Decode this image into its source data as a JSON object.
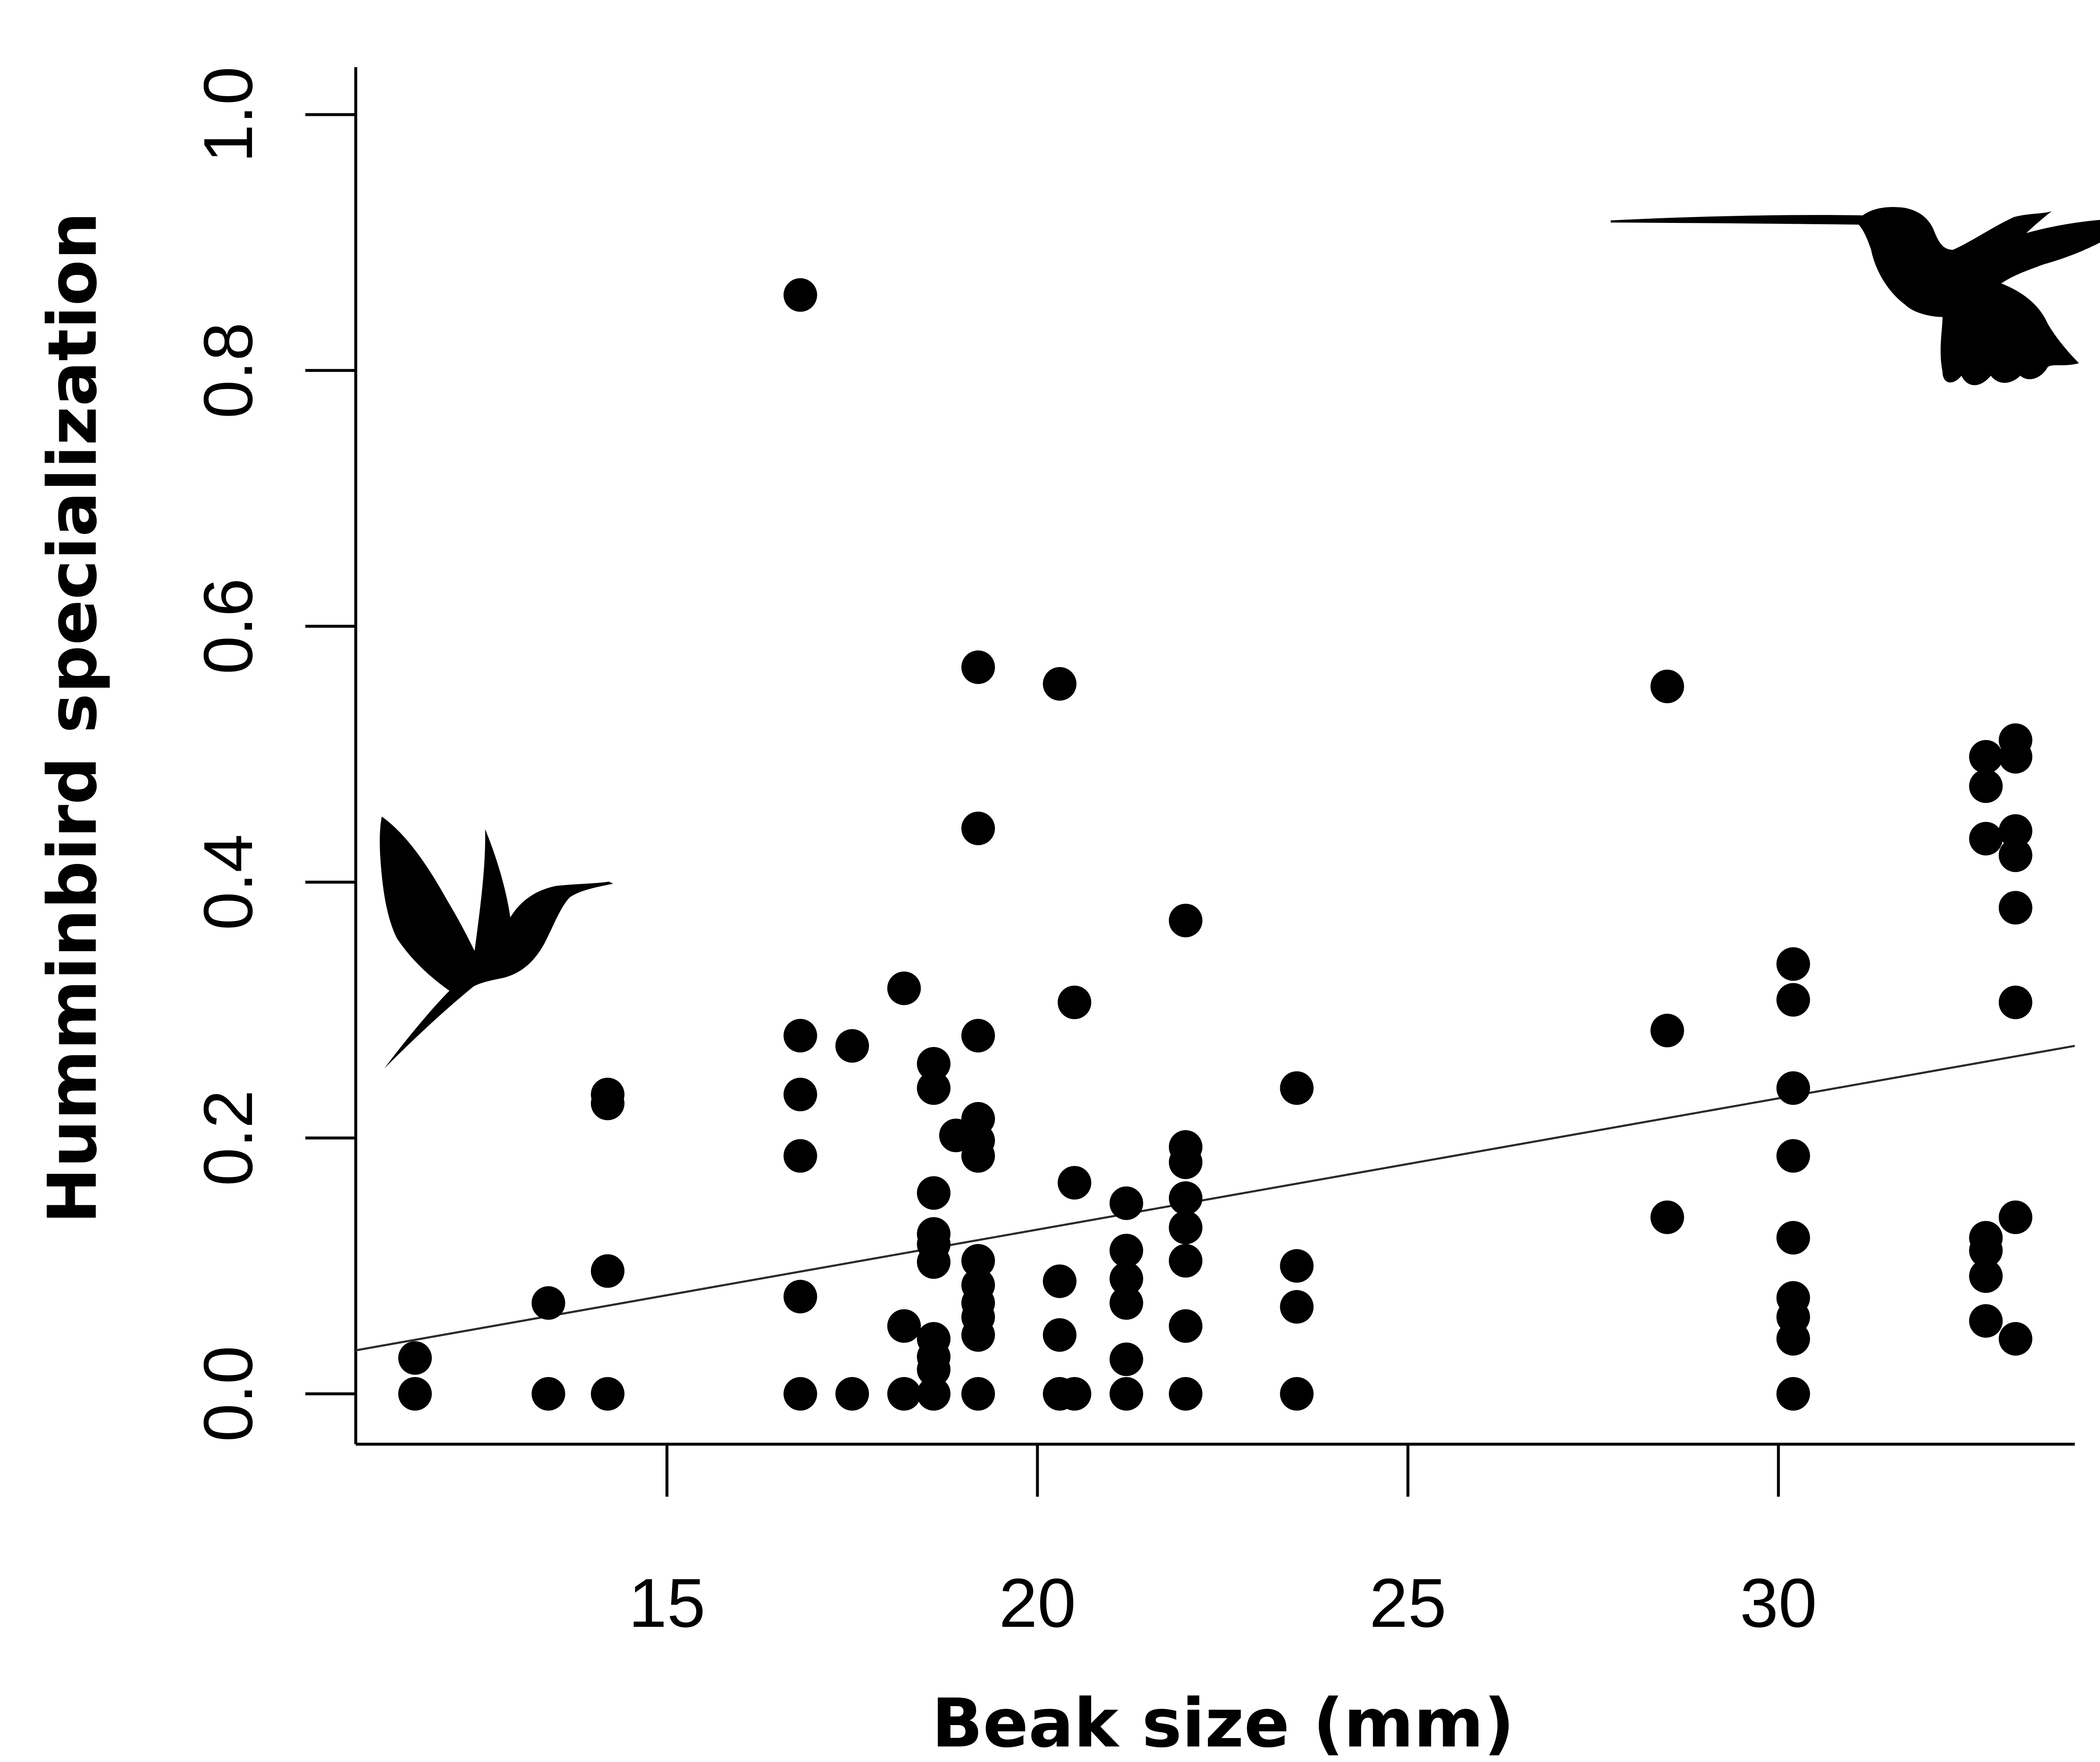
{
  "chart_data": {
    "type": "scatter",
    "xlabel": "Beak size (mm)",
    "ylabel": "Humminbird specialization",
    "xlim": [
      10.8,
      34.0
    ],
    "ylim": [
      0.0,
      1.0
    ],
    "x_ticks": [
      "15",
      "20",
      "25",
      "30"
    ],
    "x_tick_values": [
      15,
      20,
      25,
      30
    ],
    "y_ticks": [
      "0.0",
      "0.2",
      "0.4",
      "0.6",
      "0.8",
      "1.0"
    ],
    "y_tick_values": [
      0.0,
      0.2,
      0.4,
      0.6,
      0.8,
      1.0
    ],
    "grid": false,
    "legend": "none",
    "marker_color": "#000000",
    "trendline": {
      "x": [
        10.8,
        34.0
      ],
      "y": [
        0.034,
        0.272
      ]
    },
    "points": [
      {
        "x": 11.6,
        "y": 0.0
      },
      {
        "x": 11.6,
        "y": 0.028
      },
      {
        "x": 13.4,
        "y": 0.0
      },
      {
        "x": 13.4,
        "y": 0.071
      },
      {
        "x": 14.2,
        "y": 0.0
      },
      {
        "x": 14.2,
        "y": 0.096
      },
      {
        "x": 14.2,
        "y": 0.227
      },
      {
        "x": 14.2,
        "y": 0.234
      },
      {
        "x": 16.8,
        "y": 0.0
      },
      {
        "x": 16.8,
        "y": 0.076
      },
      {
        "x": 16.8,
        "y": 0.186
      },
      {
        "x": 16.8,
        "y": 0.234
      },
      {
        "x": 16.8,
        "y": 0.28
      },
      {
        "x": 16.8,
        "y": 0.859
      },
      {
        "x": 17.5,
        "y": 0.0
      },
      {
        "x": 17.5,
        "y": 0.272
      },
      {
        "x": 18.2,
        "y": 0.0
      },
      {
        "x": 18.2,
        "y": 0.053
      },
      {
        "x": 18.2,
        "y": 0.317
      },
      {
        "x": 18.6,
        "y": 0.0
      },
      {
        "x": 18.6,
        "y": 0.019
      },
      {
        "x": 18.6,
        "y": 0.029
      },
      {
        "x": 18.6,
        "y": 0.043
      },
      {
        "x": 18.6,
        "y": 0.103
      },
      {
        "x": 18.6,
        "y": 0.117
      },
      {
        "x": 18.6,
        "y": 0.125
      },
      {
        "x": 18.6,
        "y": 0.157
      },
      {
        "x": 18.6,
        "y": 0.239
      },
      {
        "x": 18.6,
        "y": 0.258
      },
      {
        "x": 18.9,
        "y": 0.202
      },
      {
        "x": 19.2,
        "y": 0.0
      },
      {
        "x": 19.2,
        "y": 0.046
      },
      {
        "x": 19.2,
        "y": 0.06
      },
      {
        "x": 19.2,
        "y": 0.071
      },
      {
        "x": 19.2,
        "y": 0.085
      },
      {
        "x": 19.2,
        "y": 0.104
      },
      {
        "x": 19.2,
        "y": 0.186
      },
      {
        "x": 19.2,
        "y": 0.198
      },
      {
        "x": 19.2,
        "y": 0.215
      },
      {
        "x": 19.2,
        "y": 0.28
      },
      {
        "x": 19.2,
        "y": 0.442
      },
      {
        "x": 19.2,
        "y": 0.568
      },
      {
        "x": 20.3,
        "y": 0.0
      },
      {
        "x": 20.3,
        "y": 0.046
      },
      {
        "x": 20.3,
        "y": 0.088
      },
      {
        "x": 20.3,
        "y": 0.555
      },
      {
        "x": 20.5,
        "y": 0.0
      },
      {
        "x": 20.5,
        "y": 0.165
      },
      {
        "x": 20.5,
        "y": 0.306
      },
      {
        "x": 21.2,
        "y": 0.0
      },
      {
        "x": 21.2,
        "y": 0.027
      },
      {
        "x": 21.2,
        "y": 0.071
      },
      {
        "x": 21.2,
        "y": 0.09
      },
      {
        "x": 21.2,
        "y": 0.112
      },
      {
        "x": 21.2,
        "y": 0.149
      },
      {
        "x": 22.0,
        "y": 0.0
      },
      {
        "x": 22.0,
        "y": 0.053
      },
      {
        "x": 22.0,
        "y": 0.104
      },
      {
        "x": 22.0,
        "y": 0.13
      },
      {
        "x": 22.0,
        "y": 0.153
      },
      {
        "x": 22.0,
        "y": 0.181
      },
      {
        "x": 22.0,
        "y": 0.193
      },
      {
        "x": 22.0,
        "y": 0.37
      },
      {
        "x": 23.5,
        "y": 0.0
      },
      {
        "x": 23.5,
        "y": 0.068
      },
      {
        "x": 23.5,
        "y": 0.1
      },
      {
        "x": 23.5,
        "y": 0.239
      },
      {
        "x": 28.5,
        "y": 0.138
      },
      {
        "x": 28.5,
        "y": 0.284
      },
      {
        "x": 28.5,
        "y": 0.553
      },
      {
        "x": 30.2,
        "y": 0.0
      },
      {
        "x": 30.2,
        "y": 0.043
      },
      {
        "x": 30.2,
        "y": 0.06
      },
      {
        "x": 30.2,
        "y": 0.075
      },
      {
        "x": 30.2,
        "y": 0.122
      },
      {
        "x": 30.2,
        "y": 0.186
      },
      {
        "x": 30.2,
        "y": 0.239
      },
      {
        "x": 30.2,
        "y": 0.308
      },
      {
        "x": 30.2,
        "y": 0.336
      },
      {
        "x": 32.8,
        "y": 0.057
      },
      {
        "x": 32.8,
        "y": 0.092
      },
      {
        "x": 32.8,
        "y": 0.112
      },
      {
        "x": 32.8,
        "y": 0.122
      },
      {
        "x": 32.8,
        "y": 0.434
      },
      {
        "x": 32.8,
        "y": 0.475
      },
      {
        "x": 32.8,
        "y": 0.498
      },
      {
        "x": 33.2,
        "y": 0.043
      },
      {
        "x": 33.2,
        "y": 0.138
      },
      {
        "x": 33.2,
        "y": 0.306
      },
      {
        "x": 33.2,
        "y": 0.38
      },
      {
        "x": 33.2,
        "y": 0.421
      },
      {
        "x": 33.2,
        "y": 0.44
      },
      {
        "x": 33.2,
        "y": 0.498
      },
      {
        "x": 33.2,
        "y": 0.511
      }
    ]
  },
  "icons": {
    "left_bird": "hummingbird-silhouette-short-beak-icon",
    "right_bird": "hummingbird-silhouette-long-beak-icon"
  }
}
